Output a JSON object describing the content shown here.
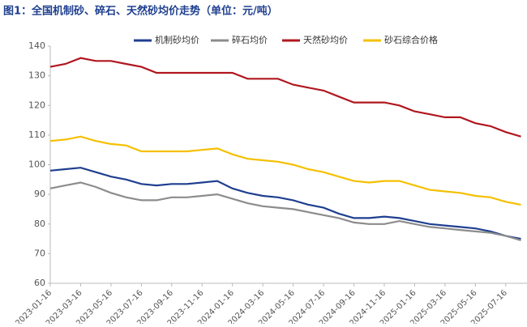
{
  "chart_data": {
    "type": "line",
    "title": "图1：全国机制砂、碎石、天然砂均价走势（单位：元/吨）",
    "categories": [
      "2023-01-16",
      null,
      "2023-03-16",
      null,
      "2023-05-16",
      null,
      "2023-07-16",
      null,
      "2023-09-16",
      null,
      "2023-11-16",
      null,
      "2024-01-16",
      null,
      "2024-03-16",
      null,
      "2024-05-16",
      null,
      "2024-07-16",
      null,
      "2024-09-16",
      null,
      "2024-11-16",
      null,
      "2025-01-16",
      null,
      "2025-03-16",
      null,
      "2025-05-16",
      null,
      "2025-07-16",
      null
    ],
    "series": [
      {
        "name": "机制砂均价",
        "color": "#1f3f8f",
        "values": [
          98,
          98.5,
          99,
          97.5,
          96,
          95,
          93.5,
          93,
          93.5,
          93.5,
          94,
          94.5,
          92,
          90.5,
          89.5,
          89,
          88,
          86.5,
          85.5,
          83.5,
          82,
          82,
          82.5,
          82,
          81,
          80,
          79.5,
          79,
          78.5,
          77.5,
          76,
          75
        ]
      },
      {
        "name": "碎石均价",
        "color": "#8c8c8c",
        "values": [
          92,
          93,
          94,
          92.5,
          90.5,
          89,
          88,
          88,
          89,
          89,
          89.5,
          90,
          88.5,
          87,
          86,
          85.5,
          85,
          84,
          83,
          82,
          80.5,
          80,
          80,
          81,
          80,
          79,
          78.5,
          78,
          77.5,
          77,
          76,
          74.5
        ]
      },
      {
        "name": "天然砂均价",
        "color": "#b0171f",
        "values": [
          133,
          134,
          136,
          135,
          135,
          134,
          133,
          131,
          131,
          131,
          131,
          131,
          131,
          129,
          129,
          129,
          127,
          126,
          125,
          123,
          121,
          121,
          121,
          120,
          118,
          117,
          116,
          116,
          114,
          113,
          111,
          109.5
        ]
      },
      {
        "name": "砂石综合价格",
        "color": "#f5c000",
        "values": [
          108,
          108.5,
          109.5,
          108,
          107,
          106.5,
          104.5,
          104.5,
          104.5,
          104.5,
          105,
          105.5,
          103.5,
          102,
          101.5,
          101,
          100,
          98.5,
          97.5,
          96,
          94.5,
          94,
          94.5,
          94.5,
          93,
          91.5,
          91,
          90.5,
          89.5,
          89,
          87.5,
          86.5
        ]
      }
    ],
    "ylim": [
      60,
      140
    ],
    "yticks": [
      60,
      70,
      80,
      90,
      100,
      110,
      120,
      130,
      140
    ],
    "grid": false,
    "legend": "top"
  }
}
